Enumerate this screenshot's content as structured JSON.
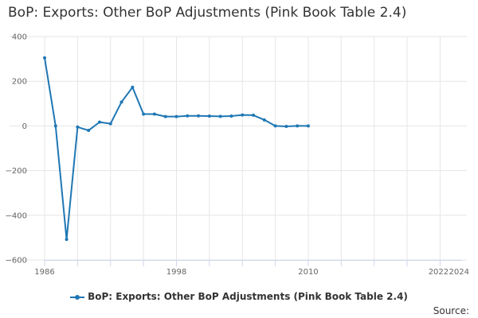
{
  "colors": {
    "series": "#1f77b4",
    "grid": "#e6e6e6",
    "axis": "#ccd6eb"
  },
  "chart_data": {
    "type": "line",
    "title": "BoP: Exports: Other BoP Adjustments (Pink Book Table 2.4)",
    "xlabel": "",
    "ylabel": "",
    "xlim": [
      1986,
      2024
    ],
    "ylim": [
      -600,
      400
    ],
    "grid": true,
    "legend_position": "bottom",
    "yticks": [
      400,
      200,
      0,
      -200,
      -400,
      -600
    ],
    "ytick_labels": [
      "400",
      "200",
      "0",
      "−200",
      "−400",
      "−600"
    ],
    "xtick_labels": [
      {
        "value": 1986,
        "label": "1986"
      },
      {
        "value": 1998,
        "label": "1998"
      },
      {
        "value": 2010,
        "label": "2010"
      },
      {
        "value": 2022,
        "label": "2022"
      },
      {
        "value": 2024,
        "label": "2024"
      }
    ],
    "series": [
      {
        "name": "BoP: Exports: Other BoP Adjustments (Pink Book Table 2.4)",
        "x": [
          1986,
          1987,
          1988,
          1989,
          1990,
          1991,
          1992,
          1993,
          1994,
          1995,
          1996,
          1997,
          1998,
          1999,
          2000,
          2001,
          2002,
          2003,
          2004,
          2005,
          2006,
          2007,
          2008,
          2009,
          2010
        ],
        "values": [
          305,
          0,
          -508,
          -5,
          -20,
          17,
          10,
          107,
          173,
          53,
          53,
          42,
          42,
          45,
          45,
          44,
          43,
          44,
          49,
          48,
          27,
          0,
          -2,
          0,
          0
        ]
      }
    ]
  },
  "legend": {
    "label": "BoP: Exports: Other BoP Adjustments (Pink Book Table 2.4)"
  },
  "source": {
    "label": "Source:"
  }
}
